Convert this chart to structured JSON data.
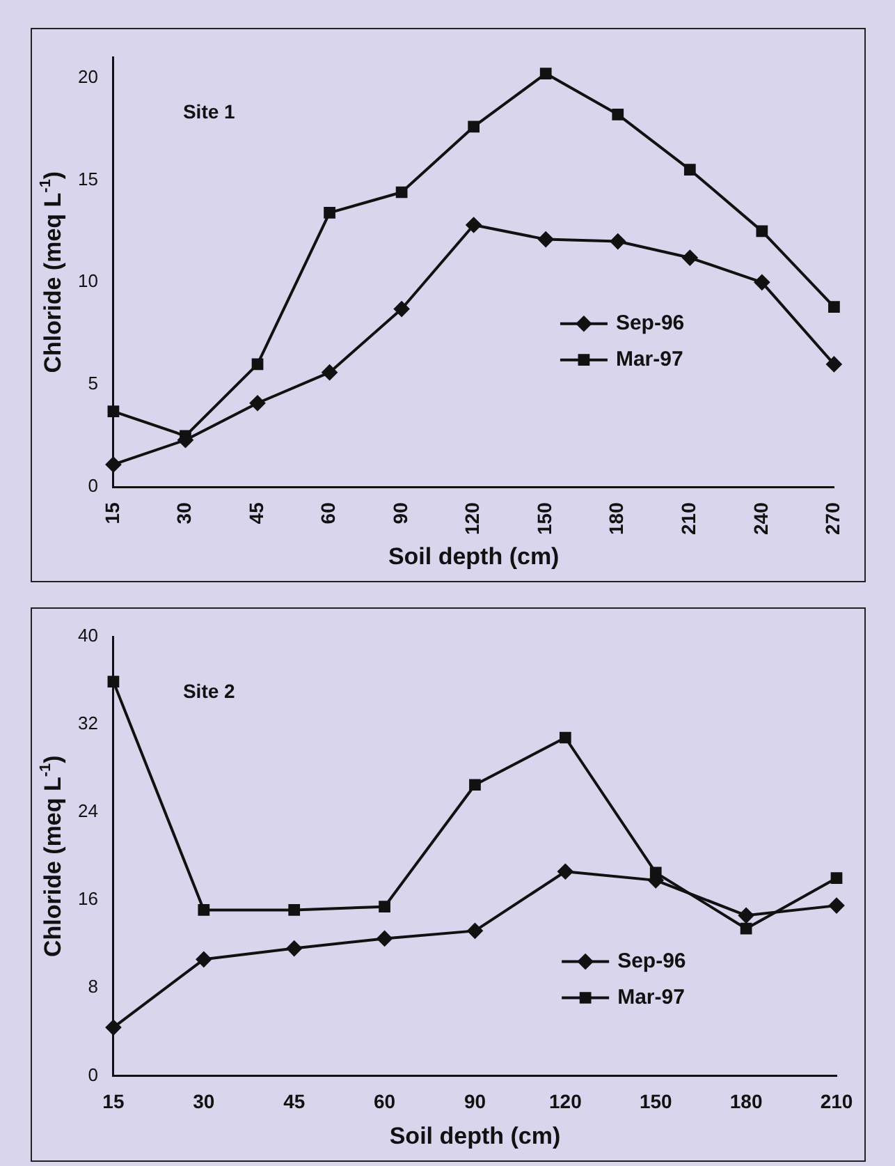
{
  "chart_data": [
    {
      "type": "line",
      "annotations": [
        "Site 1"
      ],
      "xlabel": "Soil depth (cm)",
      "ylabel": "Chloride (meq L$^{-1}$)",
      "categories": [
        "15",
        "30",
        "45",
        "60",
        "90",
        "120",
        "150",
        "180",
        "210",
        "240",
        "270"
      ],
      "ylim": [
        0,
        21
      ],
      "yticks": [
        0,
        5,
        10,
        15,
        20
      ],
      "grid": false,
      "legend": "right",
      "line_style": "solid",
      "series": [
        {
          "name": "Sep-96",
          "color": "#111111",
          "marker": "diamond",
          "values": [
            1.1,
            2.3,
            4.1,
            5.6,
            8.7,
            12.8,
            12.1,
            12.0,
            11.2,
            10.0,
            6.0
          ]
        },
        {
          "name": "Mar-97",
          "color": "#111111",
          "marker": "square",
          "values": [
            3.7,
            2.5,
            6.0,
            13.4,
            14.4,
            17.6,
            20.2,
            18.2,
            15.5,
            12.5,
            8.8
          ]
        }
      ]
    },
    {
      "type": "line",
      "annotations": [
        "Site 2"
      ],
      "xlabel": "Soil depth (cm)",
      "ylabel": "Chloride (meq L$^{-1}$)",
      "categories": [
        "15",
        "30",
        "45",
        "60",
        "90",
        "120",
        "150",
        "180",
        "210"
      ],
      "ylim": [
        0,
        40
      ],
      "yticks": [
        0,
        8,
        16,
        24,
        32,
        40
      ],
      "grid": false,
      "legend": "bottom right",
      "line_style": "solid",
      "series": [
        {
          "name": "Sep-96",
          "color": "#111111",
          "marker": "diamond",
          "values": [
            4.4,
            10.6,
            11.6,
            12.5,
            13.2,
            18.6,
            17.8,
            14.6,
            15.5
          ]
        },
        {
          "name": "Mar-97",
          "color": "#111111",
          "marker": "square",
          "values": [
            35.9,
            15.1,
            15.1,
            15.4,
            26.5,
            30.8,
            18.5,
            13.4,
            18.0
          ]
        }
      ]
    }
  ]
}
